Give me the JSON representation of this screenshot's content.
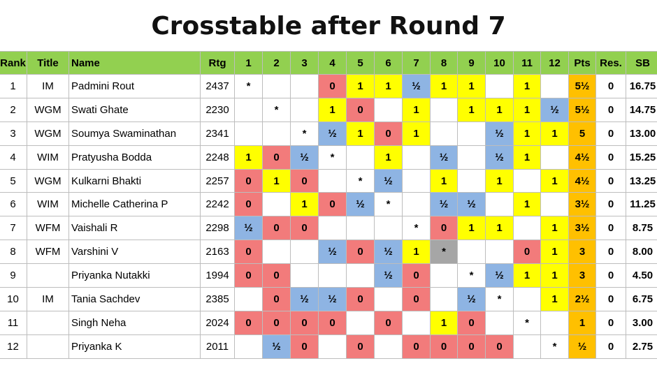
{
  "title": "Crosstable after Round 7",
  "headers": [
    "Rank",
    "Title",
    "Name",
    "Rtg",
    "1",
    "2",
    "3",
    "4",
    "5",
    "6",
    "7",
    "8",
    "9",
    "10",
    "11",
    "12",
    "Pts",
    "Res.",
    "SB"
  ],
  "colors": {
    "header": "#92d050",
    "win": "#ffff00",
    "draw": "#8eb4e3",
    "loss": "#f27b7b",
    "points": "#ffc000",
    "self_marked": "#a6a6a6"
  },
  "rows": [
    {
      "rank": "1",
      "title": "IM",
      "name": "Padmini Rout",
      "rtg": "2437",
      "results": [
        "*",
        "",
        "",
        "0",
        "1",
        "1",
        "½",
        "1",
        "1",
        "",
        "1",
        ""
      ],
      "pts": "5½",
      "res": "0",
      "sb": "16.75"
    },
    {
      "rank": "2",
      "title": "WGM",
      "name": "Swati Ghate",
      "rtg": "2230",
      "results": [
        "",
        "*",
        "",
        "1",
        "0",
        "",
        "1",
        "",
        "1",
        "1",
        "1",
        "½"
      ],
      "pts": "5½",
      "res": "0",
      "sb": "14.75"
    },
    {
      "rank": "3",
      "title": "WGM",
      "name": "Soumya Swaminathan",
      "rtg": "2341",
      "results": [
        "",
        "",
        "*",
        "½",
        "1",
        "0",
        "1",
        "",
        "",
        "½",
        "1",
        "1"
      ],
      "pts": "5",
      "res": "0",
      "sb": "13.00"
    },
    {
      "rank": "4",
      "title": "WIM",
      "name": "Pratyusha Bodda",
      "rtg": "2248",
      "results": [
        "1",
        "0",
        "½",
        "*",
        "",
        "1",
        "",
        "½",
        "",
        "½",
        "1",
        ""
      ],
      "pts": "4½",
      "res": "0",
      "sb": "15.25"
    },
    {
      "rank": "5",
      "title": "WGM",
      "name": "Kulkarni Bhakti",
      "rtg": "2257",
      "results": [
        "0",
        "1",
        "0",
        "",
        "*",
        "½",
        "",
        "1",
        "",
        "1",
        "",
        "1"
      ],
      "pts": "4½",
      "res": "0",
      "sb": "13.25"
    },
    {
      "rank": "6",
      "title": "WIM",
      "name": "Michelle Catherina P",
      "rtg": "2242",
      "results": [
        "0",
        "",
        "1",
        "0",
        "½",
        "*",
        "",
        "½",
        "½",
        "",
        "1",
        ""
      ],
      "pts": "3½",
      "res": "0",
      "sb": "11.25"
    },
    {
      "rank": "7",
      "title": "WFM",
      "name": "Vaishali R",
      "rtg": "2298",
      "results": [
        "½",
        "0",
        "0",
        "",
        "",
        "",
        "*",
        "0",
        "1",
        "1",
        "",
        "1"
      ],
      "pts": "3½",
      "res": "0",
      "sb": "8.75"
    },
    {
      "rank": "8",
      "title": "WFM",
      "name": "Varshini V",
      "rtg": "2163",
      "results": [
        "0",
        "",
        "",
        "½",
        "0",
        "½",
        "1",
        "*",
        "",
        "",
        "0",
        "1"
      ],
      "pts": "3",
      "res": "0",
      "sb": "8.00"
    },
    {
      "rank": "9",
      "title": "",
      "name": "Priyanka Nutakki",
      "rtg": "1994",
      "results": [
        "0",
        "0",
        "",
        "",
        "",
        "½",
        "0",
        "",
        "*",
        "½",
        "1",
        "1"
      ],
      "pts": "3",
      "res": "0",
      "sb": "4.50"
    },
    {
      "rank": "10",
      "title": "IM",
      "name": "Tania Sachdev",
      "rtg": "2385",
      "results": [
        "",
        "0",
        "½",
        "½",
        "0",
        "",
        "0",
        "",
        "½",
        "*",
        "",
        "1"
      ],
      "pts": "2½",
      "res": "0",
      "sb": "6.75"
    },
    {
      "rank": "11",
      "title": "",
      "name": "Singh Neha",
      "rtg": "2024",
      "results": [
        "0",
        "0",
        "0",
        "0",
        "",
        "0",
        "",
        "1",
        "0",
        "",
        "*",
        ""
      ],
      "pts": "1",
      "res": "0",
      "sb": "3.00"
    },
    {
      "rank": "12",
      "title": "",
      "name": "Priyanka K",
      "rtg": "2011",
      "results": [
        "",
        "½",
        "0",
        "",
        "0",
        "",
        "0",
        "0",
        "0",
        "0",
        "",
        "*"
      ],
      "pts": "½",
      "res": "0",
      "sb": "2.75"
    }
  ]
}
